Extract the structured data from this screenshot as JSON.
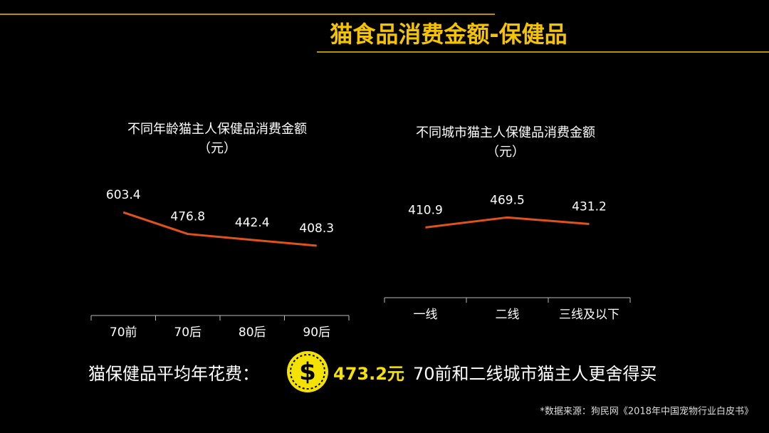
{
  "title": "猫食品消费金额-保健品",
  "chart_data": [
    {
      "type": "line",
      "title": "不同年龄猫主人保健品消费金额",
      "subtitle": "（元）",
      "categories": [
        "70前",
        "70后",
        "80后",
        "90后"
      ],
      "values": [
        603.4,
        476.8,
        442.4,
        408.3
      ],
      "color": "#e0521c"
    },
    {
      "type": "line",
      "title": "不同城市猫主人保健品消费金额",
      "subtitle": "（元）",
      "categories": [
        "一线",
        "二线",
        "三线及以下"
      ],
      "values": [
        410.9,
        469.5,
        431.2
      ],
      "color": "#e0521c"
    }
  ],
  "summary": {
    "label": "猫保健品平均年花费：",
    "icon": "$",
    "amount": "473.2元",
    "note": "70前和二线城市猫主人更舍得买"
  },
  "source": "*数据来源：狗民网《2018年中国宠物行业白皮书》"
}
